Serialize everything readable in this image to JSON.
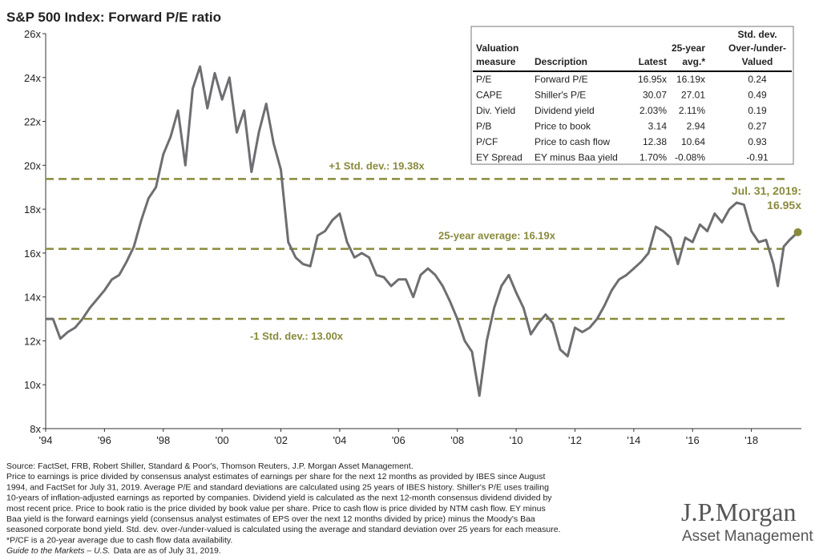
{
  "chart_data": {
    "type": "line",
    "title": "S&P 500 Index: Forward P/E ratio",
    "x": [
      1994.0,
      1994.25,
      1994.5,
      1994.75,
      1995.0,
      1995.25,
      1995.5,
      1995.75,
      1996.0,
      1996.25,
      1996.5,
      1996.75,
      1997.0,
      1997.25,
      1997.5,
      1997.75,
      1998.0,
      1998.25,
      1998.5,
      1998.75,
      1999.0,
      1999.25,
      1999.5,
      1999.75,
      2000.0,
      2000.25,
      2000.5,
      2000.75,
      2001.0,
      2001.25,
      2001.5,
      2001.75,
      2002.0,
      2002.25,
      2002.5,
      2002.75,
      2003.0,
      2003.25,
      2003.5,
      2003.75,
      2004.0,
      2004.25,
      2004.5,
      2004.75,
      2005.0,
      2005.25,
      2005.5,
      2005.75,
      2006.0,
      2006.25,
      2006.5,
      2006.75,
      2007.0,
      2007.25,
      2007.5,
      2007.75,
      2008.0,
      2008.25,
      2008.5,
      2008.75,
      2009.0,
      2009.25,
      2009.5,
      2009.75,
      2010.0,
      2010.25,
      2010.5,
      2010.75,
      2011.0,
      2011.25,
      2011.5,
      2011.75,
      2012.0,
      2012.25,
      2012.5,
      2012.75,
      2013.0,
      2013.25,
      2013.5,
      2013.75,
      2014.0,
      2014.25,
      2014.5,
      2014.75,
      2015.0,
      2015.25,
      2015.5,
      2015.75,
      2016.0,
      2016.25,
      2016.5,
      2016.75,
      2017.0,
      2017.25,
      2017.5,
      2017.75,
      2018.0,
      2018.25,
      2018.5,
      2018.75,
      2018.9,
      2019.1,
      2019.3,
      2019.58
    ],
    "series": [
      {
        "name": "Forward P/E",
        "color": "#6d6e71",
        "values": [
          13.0,
          13.0,
          12.1,
          12.4,
          12.6,
          13.0,
          13.5,
          13.9,
          14.3,
          14.8,
          15.0,
          15.6,
          16.3,
          17.5,
          18.5,
          19.0,
          20.5,
          21.3,
          22.5,
          20.0,
          23.5,
          24.5,
          22.6,
          24.2,
          23.0,
          24.0,
          21.5,
          22.5,
          19.7,
          21.5,
          22.8,
          21.0,
          19.8,
          16.5,
          15.8,
          15.5,
          15.4,
          16.8,
          17.0,
          17.5,
          17.8,
          16.5,
          15.8,
          16.0,
          15.8,
          15.0,
          14.9,
          14.5,
          14.8,
          14.8,
          14.0,
          15.0,
          15.3,
          15.0,
          14.5,
          13.8,
          13.0,
          12.0,
          11.5,
          9.5,
          12.0,
          13.5,
          14.5,
          15.0,
          14.2,
          13.5,
          12.3,
          12.8,
          13.2,
          12.8,
          11.6,
          11.3,
          12.6,
          12.4,
          12.6,
          13.0,
          13.6,
          14.3,
          14.8,
          15.0,
          15.3,
          15.6,
          16.0,
          17.2,
          17.0,
          16.7,
          15.5,
          16.7,
          16.5,
          17.3,
          17.0,
          17.8,
          17.4,
          18.0,
          18.3,
          18.2,
          17.0,
          16.5,
          16.6,
          15.5,
          14.5,
          16.3,
          16.6,
          16.95
        ]
      }
    ],
    "xlim": [
      1994,
      2019.7
    ],
    "ylim": [
      8,
      26
    ],
    "yticks": [
      {
        "value": 8,
        "label": "8x"
      },
      {
        "value": 10,
        "label": "10x"
      },
      {
        "value": 12,
        "label": "12x"
      },
      {
        "value": 14,
        "label": "14x"
      },
      {
        "value": 16,
        "label": "16x"
      },
      {
        "value": 18,
        "label": "18x"
      },
      {
        "value": 20,
        "label": "20x"
      },
      {
        "value": 22,
        "label": "22x"
      },
      {
        "value": 24,
        "label": "24x"
      },
      {
        "value": 26,
        "label": "26x"
      }
    ],
    "xticks": [
      {
        "value": 1994,
        "label": "'94"
      },
      {
        "value": 1996,
        "label": "'96"
      },
      {
        "value": 1998,
        "label": "'98"
      },
      {
        "value": 2000,
        "label": "'00"
      },
      {
        "value": 2002,
        "label": "'02"
      },
      {
        "value": 2004,
        "label": "'04"
      },
      {
        "value": 2006,
        "label": "'06"
      },
      {
        "value": 2008,
        "label": "'08"
      },
      {
        "value": 2010,
        "label": "'10"
      },
      {
        "value": 2012,
        "label": "'12"
      },
      {
        "value": 2014,
        "label": "'14"
      },
      {
        "value": 2016,
        "label": "'16"
      },
      {
        "value": 2018,
        "label": "'18"
      }
    ],
    "reference_lines": [
      {
        "label": "+1 Std. dev.: 19.38x",
        "value": 19.38,
        "color": "#8a8a3c"
      },
      {
        "label": "25-year average: 16.19x",
        "value": 16.19,
        "color": "#8a8a3c"
      },
      {
        "label": "-1 Std. dev.: 13.00x",
        "value": 13.0,
        "color": "#8a8a3c"
      }
    ],
    "end_label": [
      "Jul. 31, 2019:",
      "16.95x"
    ],
    "end_color": "#8a8a3c"
  },
  "table": {
    "columns": [
      [
        "Valuation",
        "measure"
      ],
      [
        "Description"
      ],
      [
        "Latest"
      ],
      [
        "25-year",
        "avg.*"
      ],
      [
        "Std. dev.",
        "Over-/under-",
        "Valued"
      ]
    ],
    "rows": [
      [
        "P/E",
        "Forward P/E",
        "16.95x",
        "16.19x",
        "0.24"
      ],
      [
        "CAPE",
        "Shiller's P/E",
        "30.07",
        "27.01",
        "0.49"
      ],
      [
        "Div. Yield",
        "Dividend yield",
        "2.03%",
        "2.11%",
        "0.19"
      ],
      [
        "P/B",
        "Price to book",
        "3.14",
        "2.94",
        "0.27"
      ],
      [
        "P/CF",
        "Price to cash flow",
        "12.38",
        "10.64",
        "0.93"
      ],
      [
        "EY Spread",
        "EY minus Baa yield",
        "1.70%",
        "-0.08%",
        "-0.91"
      ]
    ]
  },
  "footnotes": [
    "Source: FactSet, FRB, Robert Shiller, Standard & Poor's, Thomson Reuters, J.P. Morgan Asset Management.",
    "Price to earnings is price divided by consensus analyst estimates of earnings per share for the next 12 months as provided by IBES since August",
    "1994, and FactSet for July 31, 2019. Average P/E and standard deviations are calculated using 25 years of IBES history. Shiller's P/E uses trailing",
    "10-years of inflation-adjusted earnings as reported by companies. Dividend yield is calculated as the next 12-month consensus dividend divided by",
    "most recent price. Price to book ratio is the price divided by book value per share. Price to cash flow is price divided by NTM cash flow. EY minus",
    "Baa yield is the forward earnings yield (consensus analyst estimates of EPS over the next 12 months divided by price) minus the Moody's Baa",
    "seasoned corporate bond yield. Std. dev. over-/under-valued is calculated using the average and standard deviation over 25 years for each measure.",
    "*P/CF is a 20-year average due to cash flow data availability."
  ],
  "guide": {
    "title": "Guide to the Markets – U.S.",
    "text": "Data are as of July 31, 2019."
  },
  "logo": {
    "name": "J.P.Morgan",
    "subtitle": "Asset Management"
  }
}
